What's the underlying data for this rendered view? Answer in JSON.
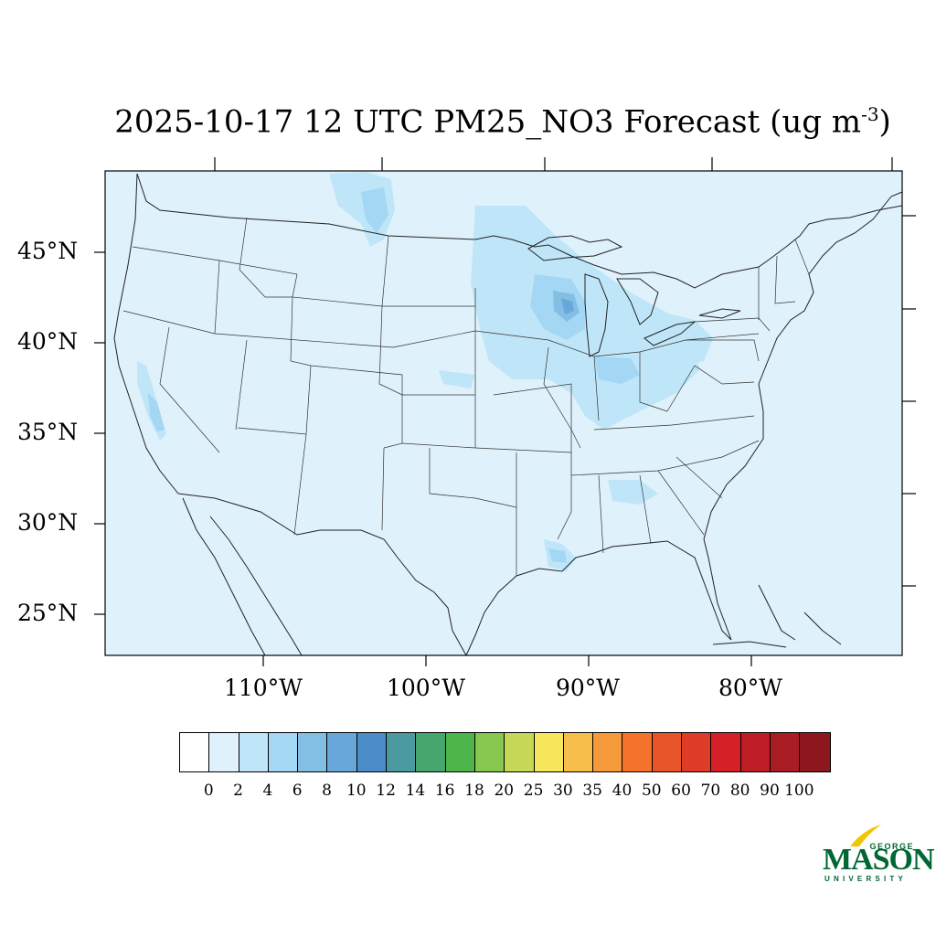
{
  "title": {
    "main": "2025-10-17 12 UTC PM25_NO3 Forecast (ug m",
    "sup": "-3",
    "close": ")"
  },
  "map": {
    "lat_labels": [
      "45°N",
      "40°N",
      "35°N",
      "30°N",
      "25°N"
    ],
    "lon_labels": [
      "110°W",
      "100°W",
      "90°W",
      "80°W"
    ],
    "background_color": "#dff1fb"
  },
  "colorbar": {
    "colors": [
      "#ffffff",
      "#dff1fb",
      "#bfe6f8",
      "#a3d7f3",
      "#83bfe4",
      "#67a7d9",
      "#4a8dc9",
      "#4a9a9f",
      "#46a66e",
      "#4db54a",
      "#86c84e",
      "#c6d957",
      "#f6e65c",
      "#f7be4c",
      "#f59a3c",
      "#f3732d",
      "#e9552b",
      "#df3c27",
      "#d42026",
      "#be1e26",
      "#a81c23",
      "#8c171c"
    ],
    "labels": [
      "0",
      "2",
      "4",
      "6",
      "8",
      "10",
      "12",
      "14",
      "16",
      "18",
      "20",
      "25",
      "30",
      "35",
      "40",
      "50",
      "60",
      "70",
      "80",
      "90",
      "100"
    ]
  },
  "logo": {
    "george": "GEORGE",
    "mason": "MASON",
    "university": "UNIVERSITY",
    "color": "#006633",
    "accent": "#f2c500"
  }
}
